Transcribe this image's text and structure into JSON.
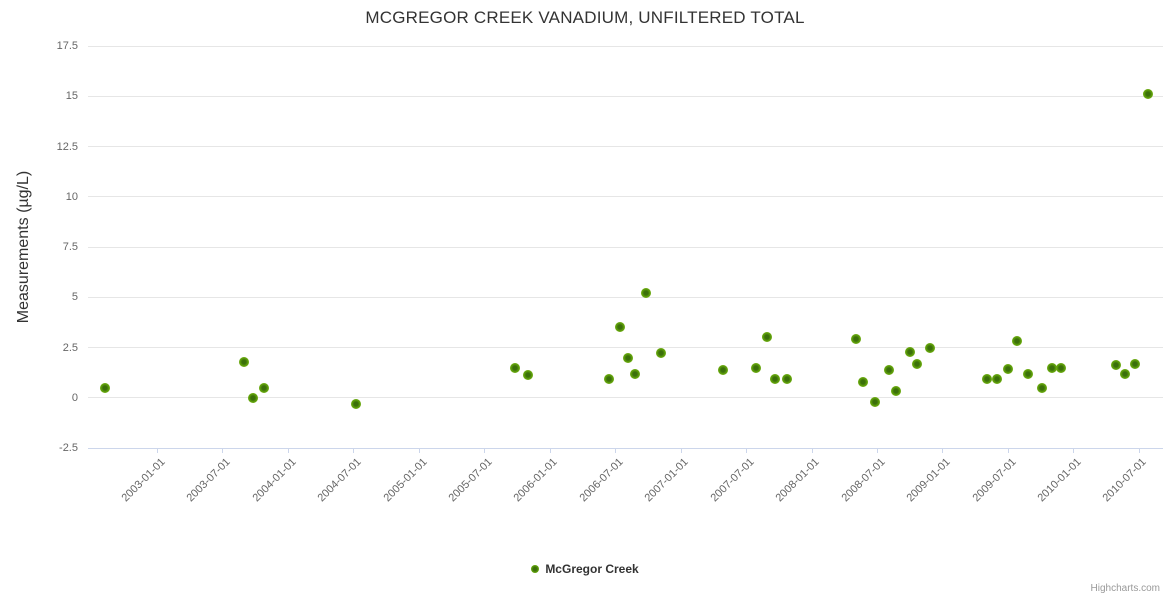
{
  "title": "MCGREGOR CREEK VANADIUM, UNFILTERED TOTAL",
  "legend": {
    "label": "McGregor Creek"
  },
  "credits": "Highcharts.com",
  "y_axis": {
    "title": "Measurements (µg/L)",
    "tick_values": [
      17.5,
      15,
      12.5,
      10,
      7.5,
      5,
      2.5,
      0,
      -2.5
    ],
    "tick_labels": [
      "17.5",
      "15",
      "12.5",
      "10",
      "7.5",
      "5",
      "2.5",
      "0",
      "-2.5"
    ]
  },
  "x_axis": {
    "tick_labels": [
      "2003-01-01",
      "2003-07-01",
      "2004-01-01",
      "2004-07-01",
      "2005-01-01",
      "2005-07-01",
      "2006-01-01",
      "2006-07-01",
      "2007-01-01",
      "2007-07-01",
      "2008-01-01",
      "2008-07-01",
      "2009-01-01",
      "2009-07-01",
      "2010-01-01",
      "2010-07-01"
    ]
  },
  "colors": {
    "marker": "#77b313",
    "marker_center": "#3b700a",
    "grid": "#e6e6e6",
    "axis_line": "#ccd6eb",
    "tick_text": "#666666",
    "title_text": "#333333",
    "credits_text": "#999999"
  },
  "chart_data": {
    "type": "scatter",
    "title": "MCGREGOR CREEK VANADIUM, UNFILTERED TOTAL",
    "xlabel": "",
    "ylabel": "Measurements (µg/L)",
    "ylim": [
      -2.5,
      17.5
    ],
    "x_range": [
      "2002-06-23",
      "2010-09-07"
    ],
    "grid": "horizontal",
    "legend_position": "bottom-center",
    "series": [
      {
        "name": "McGregor Creek",
        "color": "#77b313",
        "points": [
          {
            "date": "2002-08-07",
            "value": 0.5
          },
          {
            "date": "2003-09-01",
            "value": 1.8
          },
          {
            "date": "2003-09-26",
            "value": 0.0
          },
          {
            "date": "2003-10-26",
            "value": 0.5
          },
          {
            "date": "2004-07-08",
            "value": -0.3
          },
          {
            "date": "2005-09-26",
            "value": 1.5
          },
          {
            "date": "2005-11-01",
            "value": 1.15
          },
          {
            "date": "2006-06-13",
            "value": 0.95
          },
          {
            "date": "2006-07-14",
            "value": 3.5
          },
          {
            "date": "2006-08-06",
            "value": 2.0
          },
          {
            "date": "2006-08-27",
            "value": 1.2
          },
          {
            "date": "2006-09-27",
            "value": 5.2
          },
          {
            "date": "2006-11-06",
            "value": 2.25
          },
          {
            "date": "2007-04-29",
            "value": 1.4
          },
          {
            "date": "2007-07-28",
            "value": 1.5
          },
          {
            "date": "2007-08-30",
            "value": 3.0
          },
          {
            "date": "2007-09-22",
            "value": 0.95
          },
          {
            "date": "2007-10-23",
            "value": 0.95
          },
          {
            "date": "2008-05-04",
            "value": 2.9
          },
          {
            "date": "2008-05-22",
            "value": 0.8
          },
          {
            "date": "2008-06-25",
            "value": -0.2
          },
          {
            "date": "2008-08-05",
            "value": 1.4
          },
          {
            "date": "2008-08-24",
            "value": 0.35
          },
          {
            "date": "2008-10-01",
            "value": 2.3
          },
          {
            "date": "2008-10-22",
            "value": 1.7
          },
          {
            "date": "2008-11-28",
            "value": 2.5
          },
          {
            "date": "2009-05-04",
            "value": 0.95
          },
          {
            "date": "2009-05-31",
            "value": 0.95
          },
          {
            "date": "2009-07-01",
            "value": 1.45
          },
          {
            "date": "2009-07-27",
            "value": 2.8
          },
          {
            "date": "2009-08-26",
            "value": 1.2
          },
          {
            "date": "2009-10-05",
            "value": 0.5
          },
          {
            "date": "2009-11-03",
            "value": 1.5
          },
          {
            "date": "2009-11-27",
            "value": 1.5
          },
          {
            "date": "2010-04-29",
            "value": 1.65
          },
          {
            "date": "2010-05-24",
            "value": 1.2
          },
          {
            "date": "2010-06-21",
            "value": 1.7
          },
          {
            "date": "2010-07-26",
            "value": 15.1
          }
        ]
      }
    ]
  }
}
